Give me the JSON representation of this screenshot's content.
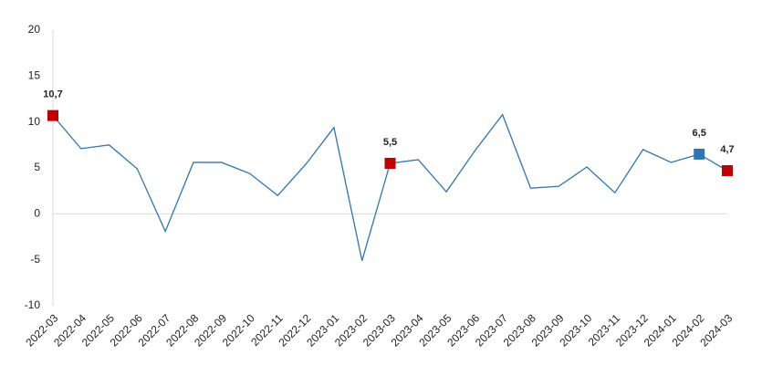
{
  "chart_data": {
    "type": "line",
    "categories": [
      "2022-03",
      "2022-04",
      "2022-05",
      "2022-06",
      "2022-07",
      "2022-08",
      "2022-09",
      "2022-10",
      "2022-11",
      "2022-12",
      "2023-01",
      "2023-02",
      "2023-03",
      "2023-04",
      "2023-05",
      "2023-06",
      "2023-07",
      "2023-08",
      "2023-09",
      "2023-10",
      "2023-11",
      "2023-12",
      "2024-01",
      "2024-02",
      "2024-03"
    ],
    "series": [
      {
        "color": "#2e75b6",
        "values": [
          10.7,
          7.1,
          7.5,
          4.9,
          -1.9,
          5.6,
          5.6,
          4.4,
          2.0,
          5.4,
          9.4,
          -5.1,
          5.5,
          5.9,
          2.4,
          6.8,
          10.8,
          2.8,
          3.0,
          5.1,
          2.3,
          7.0,
          5.6,
          6.5,
          4.7
        ],
        "value_labels": [
          "10,7",
          null,
          null,
          null,
          null,
          null,
          null,
          null,
          null,
          null,
          null,
          null,
          "5,5",
          null,
          null,
          null,
          null,
          null,
          null,
          null,
          null,
          null,
          null,
          "6,5",
          "4,7"
        ],
        "marker_colors": [
          "#c00000",
          null,
          null,
          null,
          null,
          null,
          null,
          null,
          null,
          null,
          null,
          null,
          "#c00000",
          null,
          null,
          null,
          null,
          null,
          null,
          null,
          null,
          null,
          null,
          "#2e75b6",
          "#c00000"
        ]
      }
    ],
    "ylim": [
      -10,
      20
    ],
    "yticks": [
      -10,
      -5,
      0,
      5,
      10,
      15,
      20
    ],
    "zero_line": true
  }
}
